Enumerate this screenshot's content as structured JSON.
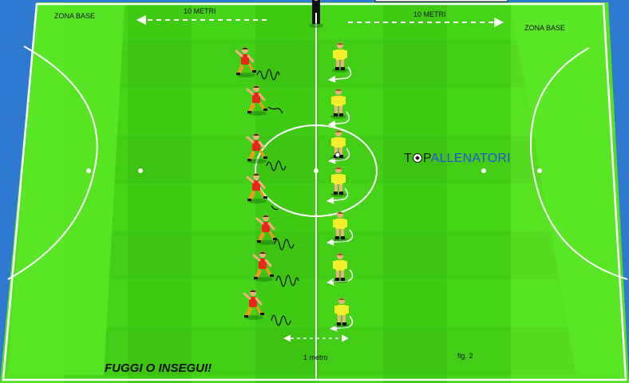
{
  "labels": {
    "zona_base_left": "ZONA BASE",
    "zona_base_right": "ZONA BASE",
    "distance_left": "10 METRI",
    "distance_right": "10 METRI",
    "spacing": "1 metro",
    "figure": "fig. 2",
    "drill_title": "FUGGI O INSEGUI!"
  },
  "logo": {
    "letter_t": "T",
    "letter_p": "P",
    "rest": "ALLENATORI"
  },
  "colors": {
    "pitch_light": "#4ad81a",
    "pitch_dark": "#3cc812",
    "surround": "#2f7ad0",
    "team_red_shirt": "#e8261a",
    "team_red_shorts": "#f09a1e",
    "team_yellow_shirt": "#f4ee2a",
    "team_yellow_shorts": "#f4ee2a",
    "referee": "#111111",
    "line": "#ffffff"
  },
  "players": {
    "red_count": 7,
    "yellow_count": 7
  }
}
